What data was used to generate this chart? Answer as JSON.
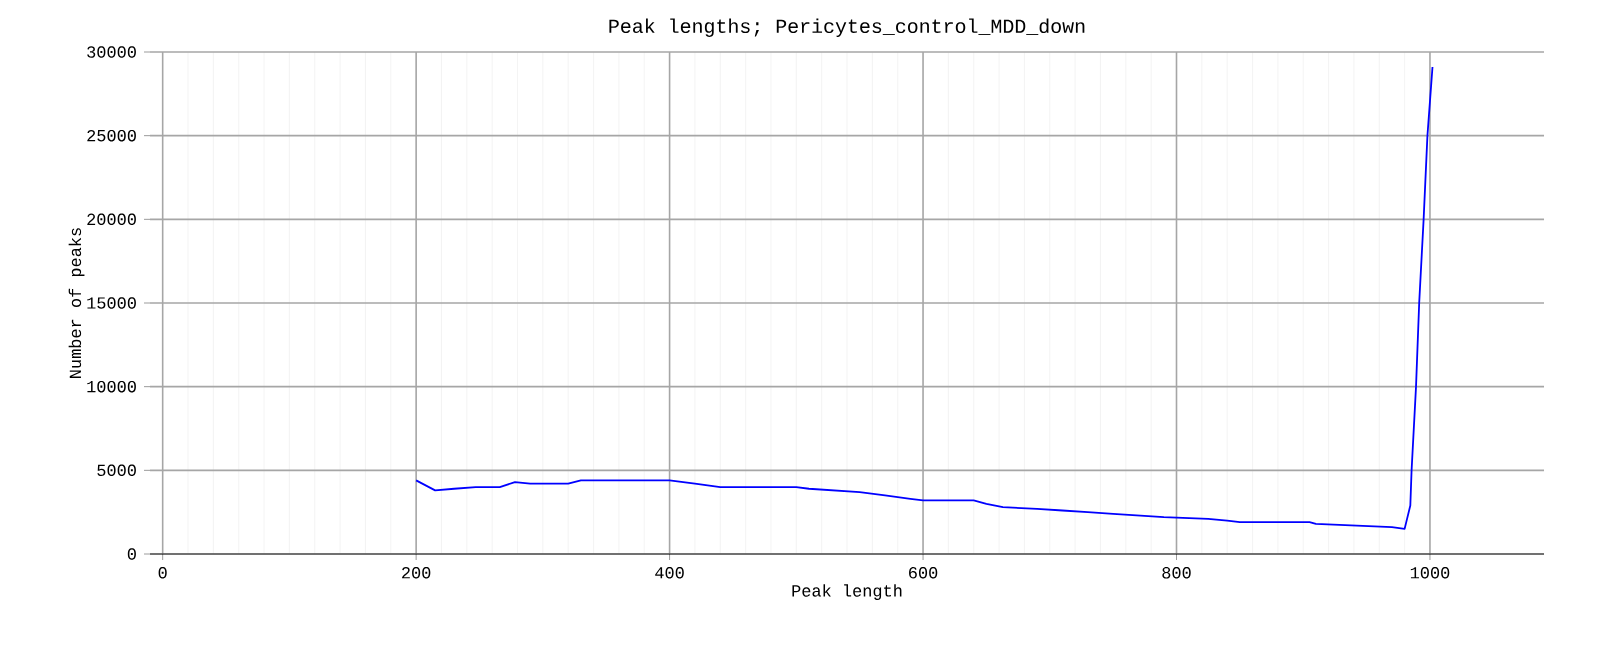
{
  "chart_data": {
    "type": "line",
    "title": "Peak lengths; Pericytes_control_MDD_down",
    "xlabel": "Peak length",
    "ylabel": "Number of peaks",
    "xlim": [
      -10,
      1090
    ],
    "ylim": [
      0,
      30000
    ],
    "xticks": [
      0,
      200,
      400,
      600,
      800,
      1000
    ],
    "yticks": [
      0,
      5000,
      10000,
      15000,
      20000,
      25000,
      30000
    ],
    "grid": true,
    "marker": "none",
    "line_style": "solid",
    "series": [
      {
        "color": "#0000ff",
        "x": [
          200,
          215,
          230,
          247,
          266,
          278,
          290,
          320,
          330,
          367,
          400,
          420,
          440,
          500,
          510,
          530,
          550,
          570,
          590,
          600,
          640,
          650,
          663,
          690,
          710,
          730,
          750,
          790,
          825,
          840,
          850,
          905,
          910,
          970,
          980,
          984.5,
          985.5,
          989,
          991.5,
          995,
          998,
          1002
        ],
        "values": [
          4400,
          3800,
          3900,
          4000,
          4000,
          4300,
          4200,
          4200,
          4400,
          4400,
          4400,
          4200,
          4000,
          4000,
          3900,
          3800,
          3700,
          3500,
          3300,
          3200,
          3200,
          3000,
          2800,
          2700,
          2600,
          2500,
          2400,
          2200,
          2100,
          2000,
          1900,
          1900,
          1800,
          1600,
          1500,
          2900,
          5000,
          10000,
          15000,
          20000,
          25000,
          29100
        ]
      }
    ]
  }
}
